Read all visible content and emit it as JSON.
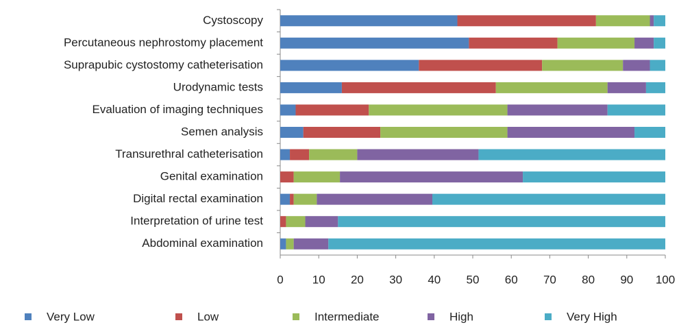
{
  "chart_data": {
    "type": "stacked_barh",
    "categories": [
      "Cystoscopy",
      "Percutaneous nephrostomy placement",
      "Suprapubic cystostomy catheterisation",
      "Urodynamic tests",
      "Evaluation of imaging techniques",
      "Semen analysis",
      "Transurethral catheterisation",
      "Genital examination",
      "Digital rectal examination",
      "Interpretation of urine test",
      "Abdominal examination"
    ],
    "series": [
      {
        "name": "Very Low",
        "color": "#4f81bd",
        "values": [
          46,
          49,
          36,
          16,
          4,
          6,
          2.5,
          0,
          2.5,
          0,
          1.5
        ]
      },
      {
        "name": "Low",
        "color": "#c0504d",
        "values": [
          36,
          23,
          32,
          40,
          19,
          20,
          5,
          3.5,
          1,
          1.5,
          0
        ]
      },
      {
        "name": "Intermediate",
        "color": "#9bbb59",
        "values": [
          14,
          20,
          21,
          29,
          36,
          33,
          12.5,
          12,
          6,
          5,
          2
        ]
      },
      {
        "name": "High",
        "color": "#8064a2",
        "values": [
          1,
          5,
          7,
          10,
          26,
          33,
          31.5,
          47.5,
          30,
          8.5,
          9
        ]
      },
      {
        "name": "Very High",
        "color": "#4bacc6",
        "values": [
          3,
          3,
          4,
          5,
          15,
          8,
          48.5,
          37,
          60.5,
          85,
          87.5
        ]
      }
    ],
    "xlim": [
      0,
      100
    ],
    "xticks": [
      0,
      10,
      20,
      30,
      40,
      50,
      60,
      70,
      80,
      90,
      100
    ],
    "legend": "bottom"
  }
}
